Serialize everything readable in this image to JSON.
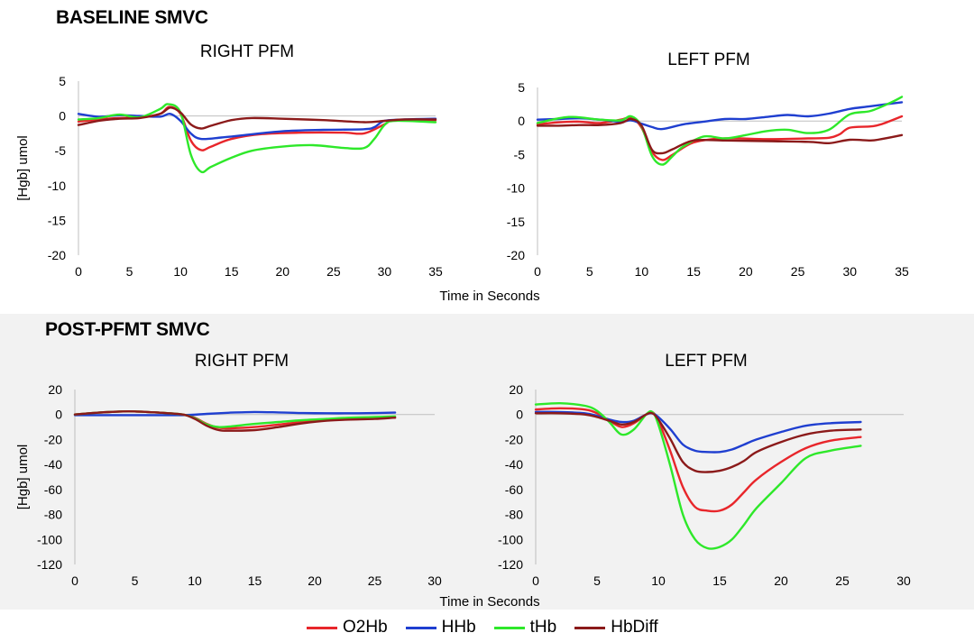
{
  "sections": [
    {
      "title": "BASELINE SMVC"
    },
    {
      "title": "POST-PFMT SMVC"
    }
  ],
  "legend": [
    {
      "name": "O2Hb",
      "color": "#e8262b"
    },
    {
      "name": "HHb",
      "color": "#1f3fd0"
    },
    {
      "name": "tHb",
      "color": "#2ee82a"
    },
    {
      "name": "HbDiff",
      "color": "#8b1a1a"
    }
  ],
  "chart_data": [
    {
      "type": "line",
      "title": "RIGHT PFM",
      "ylabel": "[Hgb] umol",
      "xlabel": "",
      "xlim": [
        0,
        35
      ],
      "ylim": [
        -20,
        5
      ],
      "xticks": [
        0,
        5,
        10,
        15,
        20,
        25,
        30,
        35
      ],
      "yticks": [
        5,
        0,
        -5,
        -10,
        -15,
        -20
      ],
      "series": [
        {
          "name": "O2Hb",
          "color": "#e8262b",
          "x": [
            0,
            2,
            4,
            6,
            8,
            8.9,
            10,
            11,
            12,
            13,
            15,
            18,
            22,
            26,
            28,
            30,
            31,
            35
          ],
          "y": [
            -0.8,
            -0.5,
            -0.3,
            -0.2,
            0.3,
            1.3,
            0.3,
            -3.5,
            -4.9,
            -4.4,
            -3.3,
            -2.6,
            -2.4,
            -2.4,
            -2.5,
            -1.2,
            -0.6,
            -0.6
          ]
        },
        {
          "name": "HHb",
          "color": "#1f3fd0",
          "x": [
            0,
            2,
            4,
            6,
            8,
            9,
            10,
            11,
            12,
            14,
            16,
            20,
            24,
            28,
            29,
            30,
            32,
            35
          ],
          "y": [
            0.3,
            -0.1,
            0.1,
            0.0,
            -0.1,
            0.3,
            -0.7,
            -2.5,
            -3.3,
            -3.1,
            -2.8,
            -2.2,
            -2.0,
            -1.9,
            -1.6,
            -0.7,
            -0.5,
            -0.4
          ]
        },
        {
          "name": "tHb",
          "color": "#2ee82a",
          "x": [
            0,
            2,
            4,
            6,
            8,
            8.8,
            10,
            11,
            12,
            13,
            15,
            17,
            20,
            23,
            26,
            28,
            29,
            30,
            31,
            35
          ],
          "y": [
            -0.5,
            -0.3,
            0.2,
            -0.2,
            1.0,
            1.7,
            0.5,
            -5.5,
            -8.0,
            -7.3,
            -6.0,
            -5.0,
            -4.4,
            -4.2,
            -4.6,
            -4.6,
            -3.3,
            -1.3,
            -0.7,
            -0.9
          ]
        },
        {
          "name": "HbDiff",
          "color": "#8b1a1a",
          "x": [
            0,
            2,
            4,
            6,
            8,
            9,
            10,
            11,
            12,
            13,
            15,
            17,
            20,
            24,
            28,
            30,
            32,
            35
          ],
          "y": [
            -1.3,
            -0.7,
            -0.4,
            -0.3,
            0.3,
            1.2,
            0.5,
            -1.2,
            -1.8,
            -1.4,
            -0.6,
            -0.3,
            -0.4,
            -0.6,
            -0.9,
            -0.7,
            -0.5,
            -0.5
          ]
        }
      ]
    },
    {
      "type": "line",
      "title": "LEFT PFM",
      "ylabel": "",
      "xlabel": "",
      "xlim": [
        0,
        35
      ],
      "ylim": [
        -20,
        5
      ],
      "xticks": [
        0,
        5,
        10,
        15,
        20,
        25,
        30,
        35
      ],
      "yticks": [
        5,
        0,
        -5,
        -10,
        -15,
        -20
      ],
      "series": [
        {
          "name": "O2Hb",
          "color": "#e8262b",
          "x": [
            0,
            2,
            4,
            6,
            8,
            9,
            10,
            11,
            12,
            13,
            15,
            18,
            22,
            26,
            28,
            29,
            30,
            32,
            33,
            35
          ],
          "y": [
            -0.5,
            -0.2,
            -0.1,
            -0.3,
            0.2,
            0.5,
            -1.0,
            -4.6,
            -5.8,
            -5.0,
            -3.2,
            -2.6,
            -2.7,
            -2.6,
            -2.5,
            -2.0,
            -1.0,
            -0.8,
            -0.5,
            0.7
          ]
        },
        {
          "name": "HHb",
          "color": "#1f3fd0",
          "x": [
            0,
            2,
            4,
            6,
            8,
            9,
            10,
            11,
            12,
            14,
            16,
            18,
            20,
            22,
            24,
            26,
            28,
            30,
            32,
            35
          ],
          "y": [
            0.2,
            0.3,
            0.4,
            0.2,
            -0.1,
            0.1,
            -0.4,
            -0.9,
            -1.2,
            -0.5,
            -0.1,
            0.3,
            0.3,
            0.6,
            0.9,
            0.7,
            1.1,
            1.8,
            2.2,
            2.8
          ]
        },
        {
          "name": "tHb",
          "color": "#2ee82a",
          "x": [
            0,
            3,
            6,
            8,
            9,
            10,
            11,
            12,
            13,
            14,
            16,
            18,
            20,
            22,
            24,
            26,
            28,
            30,
            32,
            34,
            35
          ],
          "y": [
            -0.3,
            0.6,
            0.2,
            0.1,
            0.7,
            -0.8,
            -5.2,
            -6.5,
            -5.2,
            -3.8,
            -2.3,
            -2.6,
            -2.1,
            -1.5,
            -1.3,
            -1.8,
            -1.3,
            1.0,
            1.5,
            2.8,
            3.6
          ]
        },
        {
          "name": "HbDiff",
          "color": "#8b1a1a",
          "x": [
            0,
            2,
            4,
            6,
            8,
            9,
            10,
            11,
            12,
            13,
            15,
            18,
            22,
            26,
            28,
            30,
            32,
            33,
            35
          ],
          "y": [
            -0.7,
            -0.7,
            -0.6,
            -0.6,
            -0.3,
            0.3,
            -0.7,
            -4.3,
            -4.8,
            -4.2,
            -2.9,
            -2.9,
            -3.0,
            -3.1,
            -3.3,
            -2.8,
            -2.9,
            -2.7,
            -2.1
          ]
        }
      ]
    },
    {
      "type": "line",
      "title": "RIGHT PFM",
      "ylabel": "[Hgb] umol",
      "xlabel": "",
      "xlim": [
        0,
        30
      ],
      "ylim": [
        -120,
        20
      ],
      "xticks": [
        0,
        5,
        10,
        15,
        20,
        25,
        30
      ],
      "yticks": [
        20,
        0,
        -20,
        -40,
        -60,
        -80,
        -100,
        -120
      ],
      "series": [
        {
          "name": "O2Hb",
          "color": "#e8262b",
          "x": [
            0,
            2,
            4,
            5,
            7,
            9,
            10,
            11,
            12,
            13,
            15,
            17,
            19,
            21,
            23,
            25,
            26.7
          ],
          "y": [
            0,
            1.5,
            2.5,
            2.5,
            1.5,
            0,
            -2.5,
            -7.5,
            -10.5,
            -11,
            -10,
            -8,
            -6,
            -4.5,
            -3.5,
            -3,
            -2.5
          ]
        },
        {
          "name": "HHb",
          "color": "#1f3fd0",
          "x": [
            0,
            3,
            6,
            9,
            11,
            13,
            15,
            17,
            19,
            21,
            23,
            25,
            26.7
          ],
          "y": [
            -0.5,
            -0.5,
            -0.5,
            -0.5,
            0.5,
            1.5,
            2.0,
            1.7,
            1.2,
            1.0,
            1.0,
            1.2,
            1.5
          ]
        },
        {
          "name": "tHb",
          "color": "#2ee82a",
          "x": [
            0,
            2,
            4,
            5,
            7,
            9,
            10,
            11,
            12,
            13,
            15,
            17,
            19,
            21,
            23,
            25,
            26.7
          ],
          "y": [
            0,
            1.5,
            2.5,
            2.5,
            1.5,
            0,
            -3.0,
            -8,
            -10,
            -9.5,
            -7.5,
            -6,
            -4.5,
            -3.5,
            -2.5,
            -2,
            -1.5
          ]
        },
        {
          "name": "HbDiff",
          "color": "#8b1a1a",
          "x": [
            0,
            2,
            4,
            5,
            7,
            9,
            10,
            11,
            12,
            13,
            15,
            17,
            19,
            21,
            23,
            25,
            26.7
          ],
          "y": [
            0,
            1.5,
            2.5,
            2.5,
            1.5,
            0,
            -3.5,
            -9,
            -12.5,
            -13,
            -12.5,
            -10,
            -7,
            -5,
            -4,
            -3.5,
            -2.5
          ]
        }
      ]
    },
    {
      "type": "line",
      "title": "LEFT PFM",
      "ylabel": "",
      "xlabel": "",
      "xlim": [
        0,
        30
      ],
      "ylim": [
        -120,
        20
      ],
      "xticks": [
        0,
        5,
        10,
        15,
        20,
        25,
        30
      ],
      "yticks": [
        20,
        0,
        -20,
        -40,
        -60,
        -80,
        -100,
        -120
      ],
      "series": [
        {
          "name": "O2Hb",
          "color": "#e8262b",
          "x": [
            0,
            2,
            4,
            5,
            6,
            7,
            8,
            9,
            9.5,
            10,
            11,
            12,
            13,
            14,
            15,
            16,
            17,
            18,
            20,
            22,
            24,
            26.5
          ],
          "y": [
            4,
            5,
            4,
            1,
            -5,
            -10,
            -7,
            0,
            2,
            -5,
            -30,
            -58,
            -74,
            -77,
            -77,
            -72,
            -62,
            -52,
            -38,
            -27,
            -21,
            -18
          ]
        },
        {
          "name": "HHb",
          "color": "#1f3fd0",
          "x": [
            0,
            2,
            4,
            5,
            6,
            7,
            8,
            9,
            9.5,
            10,
            11,
            12,
            13,
            14,
            15,
            16,
            17,
            18,
            20,
            22,
            24,
            26.5
          ],
          "y": [
            2,
            2,
            1,
            -1,
            -4,
            -6,
            -5,
            0,
            1,
            -2,
            -12,
            -24,
            -29,
            -30,
            -30,
            -28,
            -24,
            -20,
            -14,
            -9,
            -7,
            -6
          ]
        },
        {
          "name": "tHb",
          "color": "#2ee82a",
          "x": [
            0,
            2,
            4,
            5,
            6,
            7,
            8,
            9,
            9.5,
            10,
            11,
            12,
            13,
            14,
            15,
            16,
            17,
            18,
            20,
            22,
            24,
            26.5
          ],
          "y": [
            8,
            9,
            7,
            3,
            -6,
            -16,
            -12,
            0,
            2,
            -8,
            -42,
            -80,
            -100,
            -107,
            -106,
            -100,
            -88,
            -75,
            -55,
            -35,
            -29,
            -25
          ]
        },
        {
          "name": "HbDiff",
          "color": "#8b1a1a",
          "x": [
            0,
            2,
            4,
            5,
            6,
            7,
            8,
            9,
            9.5,
            10,
            11,
            12,
            13,
            14,
            15,
            16,
            17,
            18,
            20,
            22,
            24,
            26.5
          ],
          "y": [
            1,
            1,
            0,
            -2,
            -5,
            -8,
            -6,
            0,
            1,
            -4,
            -20,
            -38,
            -45,
            -46,
            -45,
            -42,
            -37,
            -30,
            -22,
            -16,
            -13,
            -12
          ]
        }
      ]
    }
  ],
  "x_axis_title": "Time in Seconds"
}
